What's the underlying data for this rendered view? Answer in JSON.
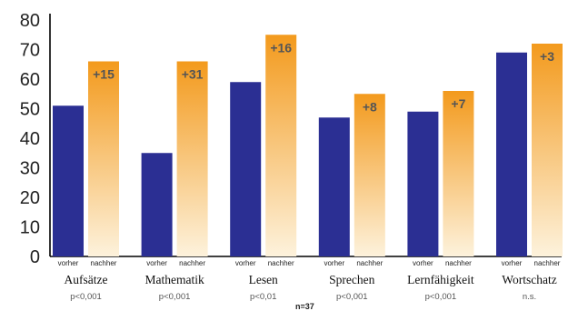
{
  "chart_data": {
    "type": "bar",
    "categories": [
      "Aufsätze",
      "Mathematik",
      "Lesen",
      "Sprechen",
      "Lernfähigkeit",
      "Wortschatz"
    ],
    "p_values": [
      "p<0,001",
      "p<0,001",
      "p<0,01",
      "p<0,001",
      "p<0,001",
      "n.s."
    ],
    "series": [
      {
        "label": "vorher",
        "values": [
          51,
          35,
          59,
          47,
          49,
          69
        ],
        "color": "#2b2f93"
      },
      {
        "label": "nachher",
        "values": [
          66,
          66,
          75,
          55,
          56,
          72
        ],
        "color_top": "#f39a1d",
        "color_bottom": "#fdf2dc"
      }
    ],
    "deltas": [
      "+15",
      "+31",
      "+16",
      "+8",
      "+7",
      "+3"
    ],
    "yticks": [
      0,
      10,
      20,
      30,
      40,
      50,
      60,
      70,
      80
    ],
    "ylim": [
      0,
      80
    ],
    "note": "n=37",
    "grid": false
  }
}
